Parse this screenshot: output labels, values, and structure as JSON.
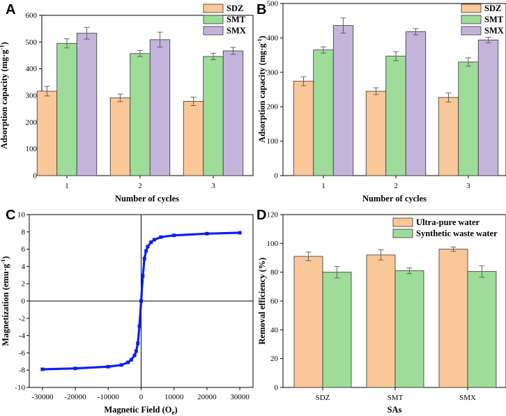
{
  "colors": {
    "SDZ": "#fac898",
    "SMT": "#9edc9a",
    "SMX": "#c4b4dc",
    "ultra": "#fac898",
    "synth": "#9edc9a",
    "curve": "#0a1ef0"
  },
  "chart_data": [
    {
      "type": "bar",
      "panel_label": "A",
      "xlabel": "Number of cycles",
      "ylabel_main": "Adsorption capacity (mg·g",
      "ylabel_sup": "-1",
      "ylabel_end": ")",
      "categories": [
        "1",
        "2",
        "3"
      ],
      "ylim": [
        0,
        600
      ],
      "yticks": [
        0,
        100,
        200,
        300,
        400,
        500,
        600
      ],
      "legend_position": "top-right",
      "series": [
        {
          "name": "SDZ",
          "values": [
            316,
            291,
            278
          ],
          "errors": [
            18,
            14,
            16
          ]
        },
        {
          "name": "SMT",
          "values": [
            495,
            457,
            446
          ],
          "errors": [
            17,
            11,
            12
          ]
        },
        {
          "name": "SMX",
          "values": [
            533,
            509,
            467
          ],
          "errors": [
            22,
            28,
            13
          ]
        }
      ]
    },
    {
      "type": "bar",
      "panel_label": "B",
      "xlabel": "Number of cycles",
      "ylabel_main": "Adsorption capacity (mg·g",
      "ylabel_sup": "-1",
      "ylabel_end": ")",
      "categories": [
        "1",
        "2",
        "3"
      ],
      "ylim": [
        0,
        500
      ],
      "yticks": [
        0,
        100,
        200,
        300,
        400,
        500
      ],
      "legend_position": "top-right",
      "series": [
        {
          "name": "SDZ",
          "values": [
            274,
            245,
            227
          ],
          "errors": [
            13,
            10,
            13
          ]
        },
        {
          "name": "SMT",
          "values": [
            365,
            347,
            330
          ],
          "errors": [
            9,
            13,
            12
          ]
        },
        {
          "name": "SMX",
          "values": [
            436,
            418,
            394
          ],
          "errors": [
            22,
            9,
            8
          ]
        }
      ]
    },
    {
      "type": "line",
      "panel_label": "C",
      "xlabel_main": "Magnetic Field (O",
      "xlabel_sub": "e",
      "xlabel_end": ")",
      "ylabel_main": "Magnetization (emu·g",
      "ylabel_sup": "-1",
      "ylabel_end": ")",
      "xlim": [
        -34000,
        34000
      ],
      "ylim": [
        -10,
        10
      ],
      "xticks": [
        -30000,
        -20000,
        -10000,
        0,
        10000,
        20000,
        30000
      ],
      "yticks": [
        -10,
        -8,
        -6,
        -4,
        -2,
        0,
        2,
        4,
        6,
        8,
        10
      ],
      "series": [
        {
          "name": "magnetization",
          "curve": "Langevin-type saturation curve",
          "x": [
            -30000,
            -20000,
            -10000,
            -6000,
            -4000,
            -3000,
            -2000,
            -1500,
            -1000,
            -500,
            0,
            500,
            1000,
            1500,
            2000,
            3000,
            4000,
            6000,
            10000,
            20000,
            30000
          ],
          "y": [
            -7.9,
            -7.8,
            -7.6,
            -7.4,
            -7.1,
            -6.8,
            -6.3,
            -5.8,
            -4.9,
            -2.9,
            0,
            2.9,
            4.9,
            5.8,
            6.3,
            6.8,
            7.1,
            7.4,
            7.6,
            7.8,
            7.9
          ]
        }
      ]
    },
    {
      "type": "bar",
      "panel_label": "D",
      "xlabel": "SAs",
      "ylabel": "Removal efficiency (%)",
      "categories": [
        "SDZ",
        "SMT",
        "SMX"
      ],
      "ylim": [
        0,
        120
      ],
      "yticks": [
        0,
        20,
        40,
        60,
        80,
        100,
        120
      ],
      "legend_position": "top-right",
      "series": [
        {
          "name": "Ultra-pure water",
          "values": [
            91,
            92,
            96
          ],
          "errors": [
            3,
            3.5,
            1.5
          ]
        },
        {
          "name": "Synthetic waste water",
          "values": [
            80,
            81,
            80.5
          ],
          "errors": [
            4,
            2,
            4
          ]
        }
      ]
    }
  ]
}
